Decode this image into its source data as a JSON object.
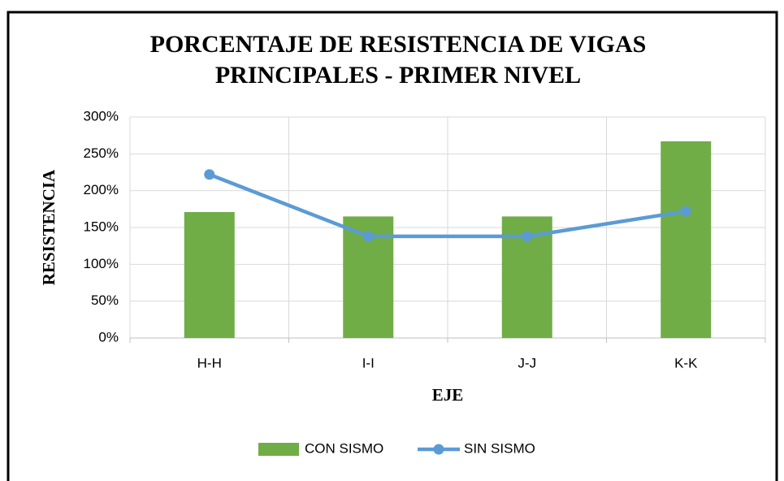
{
  "chart_data": {
    "type": "bar",
    "title": [
      "PORCENTAJE DE RESISTENCIA DE VIGAS",
      "PRINCIPALES - PRIMER NIVEL"
    ],
    "x_label": "EJE",
    "y_label": "RESISTENCIA",
    "categories": [
      "H-H",
      "I-I",
      "J-J",
      "K-K"
    ],
    "series": [
      {
        "name": "CON SISMO",
        "type": "bar",
        "color": "#70ad47",
        "values": [
          171,
          165,
          165,
          267
        ]
      },
      {
        "name": "SIN SISMO",
        "type": "line",
        "color": "#5b9bd5",
        "values": [
          222,
          138,
          138,
          172
        ]
      }
    ],
    "ylim": [
      0,
      300
    ],
    "yticks": [
      {
        "value": 0,
        "label": "0%"
      },
      {
        "value": 50,
        "label": "50%"
      },
      {
        "value": 100,
        "label": "100%"
      },
      {
        "value": 150,
        "label": "150%"
      },
      {
        "value": 200,
        "label": "200%"
      },
      {
        "value": 250,
        "label": "250%"
      },
      {
        "value": 300,
        "label": "300%"
      }
    ],
    "grid": true,
    "legend": "bottom"
  }
}
